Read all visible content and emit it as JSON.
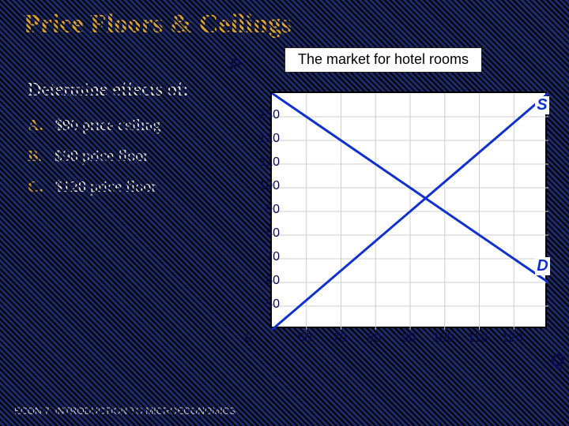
{
  "title": "Price Floors & Ceilings",
  "subtitle": "Determine effects of:",
  "items": [
    {
      "marker": "A.",
      "text": "$90 price ceiling"
    },
    {
      "marker": "B.",
      "text": "$90 price floor"
    },
    {
      "marker": "C.",
      "text": "$120 price floor"
    }
  ],
  "chart": {
    "title": "The market for hotel rooms",
    "type": "line",
    "x_axis_label": "Q",
    "y_axis_label": "P",
    "origin_label": "0",
    "xlim": [
      50,
      130
    ],
    "ylim": [
      40,
      140
    ],
    "xticks": [
      60,
      70,
      80,
      90,
      100,
      110,
      120
    ],
    "yticks": [
      50,
      60,
      70,
      80,
      90,
      100,
      110,
      120,
      130
    ],
    "grid_x_step": 10,
    "grid_y_step": 10,
    "background_color": "#ffffff",
    "grid_color": "#cfcfcf",
    "axis_color": "#000000",
    "series": {
      "supply": {
        "label": "S",
        "color": "#1030d0",
        "line_width": 3,
        "points": [
          [
            50,
            40
          ],
          [
            130,
            140
          ]
        ]
      },
      "demand": {
        "label": "D",
        "color": "#1030d0",
        "line_width": 3,
        "points": [
          [
            50,
            140
          ],
          [
            130,
            60
          ]
        ]
      }
    },
    "label_positions": {
      "S": {
        "q": 128,
        "p": 134
      },
      "D": {
        "q": 128,
        "p": 66
      }
    },
    "title_fontsize": 18,
    "tick_fontsize": 16,
    "axis_label_fontsize": 22
  },
  "footer": "ECON 7: INTRODUCTION TO MICROECONOMICS",
  "colors": {
    "page_bg": "#1a2a6b",
    "title": "#d8a038",
    "body_text": "#e8e8f0",
    "marker": "#d8a038"
  }
}
